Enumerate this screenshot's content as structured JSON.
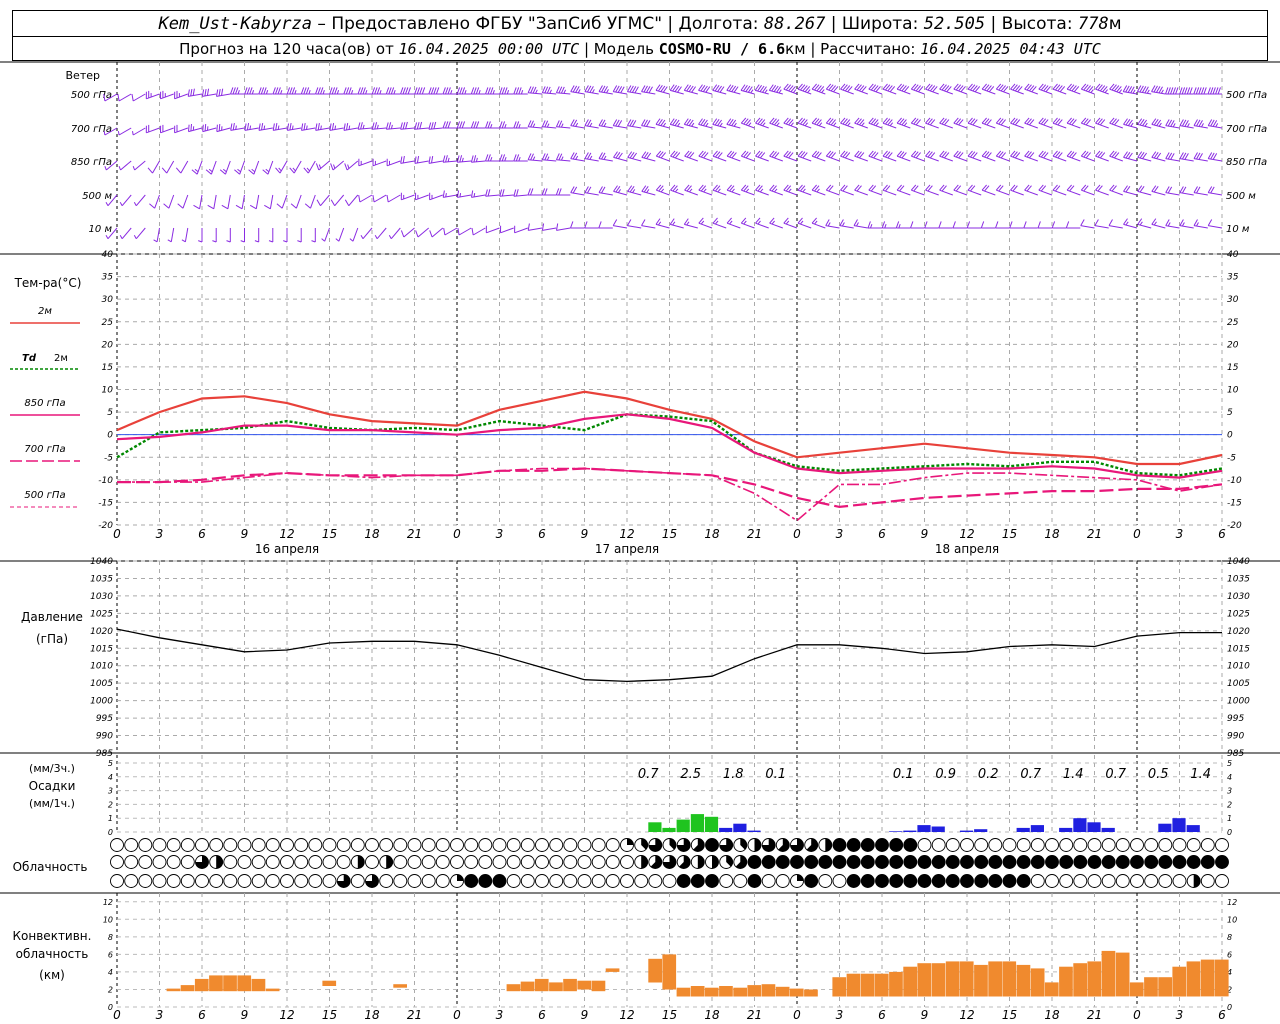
{
  "header": {
    "station": "Kem_Ust-Kabyrza",
    "provider": " – Предоставлено ФГБУ \"ЗапСиб УГМС\" | Долгота: ",
    "lon": "88.267",
    "lat_label": " | Широта: ",
    "lat": "52.505",
    "alt_label": " | Высота: ",
    "alt": "778",
    "alt_unit": "м",
    "fc_label": "Прогноз на 120 часа(ов) от ",
    "fc_time": "16.04.2025 00:00 UTC",
    "model_label": " | Модель ",
    "model": "COSMO-RU / 6.6",
    "model_unit": "км",
    "calc_label": " | Рассчитано: ",
    "calc_time": "16.04.2025 04:43 UTC"
  },
  "labels": {
    "wind": "Ветер",
    "levels": [
      "500 гПа",
      "700 гПа",
      "850 гПа",
      "500 м",
      "10  м"
    ],
    "temp_title": "Тем-ра(°С)",
    "t2m": "2м",
    "td_sym": "Td",
    "td_lvl": "2м",
    "t850": "850 гПа",
    "t700": "700 гПа",
    "t500": "500 гПа",
    "pressure_title": "Давление",
    "pressure_unit": "(гПа)",
    "precip_unit3": "(мм/3ч.)",
    "precip_title": "Осадки",
    "precip_unit1": "(мм/1ч.)",
    "cloud_title": "Облачность",
    "conv_l1": "Конвективн.",
    "conv_l2": "облачность",
    "conv_unit": "(км)"
  },
  "colors": {
    "wind": "#8a2be2",
    "t2m": "#e8413a",
    "td": "#008800",
    "t850": "#e8177a",
    "zero_line": "#3355ee",
    "precip_rain": "#1fc41f",
    "precip_snow": "#2020e0",
    "conv": "#f08a2e"
  },
  "chart_data": [
    {
      "type": "line",
      "name": "temperature",
      "x_ticks": [
        "0",
        "3",
        "6",
        "9",
        "12",
        "15",
        "18",
        "21",
        "0",
        "3",
        "6",
        "9",
        "12",
        "15",
        "18",
        "21",
        "0",
        "3",
        "6",
        "9",
        "12",
        "15",
        "18",
        "21",
        "0",
        "3",
        "6"
      ],
      "day_labels": [
        "16 апреля",
        "17 апреля",
        "18 апреля"
      ],
      "ylim": [
        -20,
        40
      ],
      "y_ticks": [
        "-20",
        "-15",
        "-10",
        "-5",
        "0",
        "5",
        "10",
        "15",
        "20",
        "25",
        "30",
        "35",
        "40"
      ],
      "x_hours": [
        0,
        3,
        6,
        9,
        12,
        15,
        18,
        21,
        24,
        27,
        30,
        33,
        36,
        39,
        42,
        45,
        48,
        51,
        54,
        57,
        60,
        63,
        66,
        69,
        72,
        75,
        78
      ],
      "series": [
        {
          "name": "2м",
          "values": [
            1,
            5,
            8,
            8.5,
            7,
            4.5,
            3,
            2.5,
            2,
            5.5,
            7.5,
            9.5,
            8,
            5.5,
            3.5,
            -1.5,
            -5,
            -4,
            -3,
            -2,
            -3,
            -4,
            -4.5,
            -5,
            -6.5,
            -6.5,
            -4.5
          ]
        },
        {
          "name": "Td 2м",
          "values": [
            -5,
            0.5,
            1,
            1.5,
            3,
            1.5,
            1,
            1.5,
            1,
            3,
            2,
            1,
            4.5,
            4,
            3,
            -4,
            -7,
            -8,
            -7.5,
            -7,
            -6.5,
            -7,
            -6,
            -6,
            -8.5,
            -9,
            -7.5
          ]
        },
        {
          "name": "850 гПа",
          "values": [
            -1,
            -0.5,
            0.5,
            2,
            2,
            1,
            1,
            0.5,
            0,
            1,
            1.5,
            3.5,
            4.5,
            3.5,
            1.5,
            -4,
            -7.5,
            -8.5,
            -8,
            -7.5,
            -7.5,
            -7.5,
            -7,
            -7.5,
            -9,
            -9.5,
            -8
          ]
        },
        {
          "name": "700 гПа",
          "values": [
            -10.5,
            -10.5,
            -10,
            -9,
            -8.5,
            -9,
            -9,
            -9,
            -9,
            -8,
            -8,
            -7.5,
            -8,
            -8.5,
            -9,
            -11,
            -14,
            -16,
            -15,
            -14,
            -13.5,
            -13,
            -12.5,
            -12.5,
            -12,
            -12,
            -11
          ]
        },
        {
          "name": "500 гПа",
          "values": [
            -10.5,
            -10.5,
            -10.5,
            -9.5,
            -8.5,
            -9,
            -9.5,
            -9,
            -9,
            -8,
            -7.5,
            -7.5,
            -8,
            -8.5,
            -9,
            -13,
            -19,
            -11,
            -11,
            -9.5,
            -8.5,
            -8.5,
            -9,
            -9.5,
            -10,
            -12.5,
            -11
          ]
        }
      ]
    },
    {
      "type": "line",
      "name": "pressure",
      "ylim": [
        985,
        1040
      ],
      "y_ticks": [
        "985",
        "990",
        "995",
        "1000",
        "1005",
        "1010",
        "1015",
        "1020",
        "1025",
        "1030",
        "1035",
        "1040"
      ],
      "x_hours": [
        0,
        3,
        6,
        9,
        12,
        15,
        18,
        21,
        24,
        27,
        30,
        33,
        36,
        39,
        42,
        45,
        48,
        51,
        54,
        57,
        60,
        63,
        66,
        69,
        72,
        75,
        78
      ],
      "values": [
        1020.5,
        1018,
        1016,
        1014,
        1014.5,
        1016.5,
        1017,
        1017,
        1016,
        1013,
        1009.5,
        1006,
        1005.5,
        1006,
        1007,
        1012,
        1016,
        1016,
        1015,
        1013.5,
        1014,
        1015.5,
        1016,
        1015.5,
        1018.5,
        1019.5,
        1019.5
      ]
    },
    {
      "type": "bar",
      "name": "precipitation",
      "ylim": [
        0,
        5
      ],
      "y_ticks": [
        "0",
        "1",
        "2",
        "3",
        "4",
        "5"
      ],
      "sums_3h": [
        {
          "h": 39,
          "v": "0.7"
        },
        {
          "h": 42,
          "v": "2.5"
        },
        {
          "h": 45,
          "v": "1.8"
        },
        {
          "h": 48,
          "v": "0.1"
        },
        {
          "h": 57,
          "v": "0.1"
        },
        {
          "h": 60,
          "v": "0.9"
        },
        {
          "h": 63,
          "v": "0.2"
        },
        {
          "h": 66,
          "v": "0.7"
        },
        {
          "h": 69,
          "v": "1.4"
        },
        {
          "h": 72,
          "v": "0.7"
        },
        {
          "h": 75,
          "v": "0.5"
        },
        {
          "h": 78,
          "v": "1.4"
        }
      ],
      "bars": [
        {
          "h": 38,
          "v": 0.7,
          "kind": "rain"
        },
        {
          "h": 39,
          "v": 0.3,
          "kind": "rain"
        },
        {
          "h": 40,
          "v": 0.9,
          "kind": "rain"
        },
        {
          "h": 41,
          "v": 1.3,
          "kind": "rain"
        },
        {
          "h": 42,
          "v": 1.1,
          "kind": "rain"
        },
        {
          "h": 43,
          "v": 0.3,
          "kind": "snow"
        },
        {
          "h": 44,
          "v": 0.6,
          "kind": "snow"
        },
        {
          "h": 45,
          "v": 0.1,
          "kind": "snow"
        },
        {
          "h": 55,
          "v": 0.05,
          "kind": "snow"
        },
        {
          "h": 56,
          "v": 0.1,
          "kind": "snow"
        },
        {
          "h": 57,
          "v": 0.5,
          "kind": "snow"
        },
        {
          "h": 58,
          "v": 0.4,
          "kind": "snow"
        },
        {
          "h": 60,
          "v": 0.1,
          "kind": "snow"
        },
        {
          "h": 61,
          "v": 0.2,
          "kind": "snow"
        },
        {
          "h": 64,
          "v": 0.3,
          "kind": "snow"
        },
        {
          "h": 65,
          "v": 0.5,
          "kind": "snow"
        },
        {
          "h": 67,
          "v": 0.3,
          "kind": "snow"
        },
        {
          "h": 68,
          "v": 1.0,
          "kind": "snow"
        },
        {
          "h": 69,
          "v": 0.7,
          "kind": "snow"
        },
        {
          "h": 70,
          "v": 0.3,
          "kind": "snow"
        },
        {
          "h": 74,
          "v": 0.6,
          "kind": "snow"
        },
        {
          "h": 75,
          "v": 1.0,
          "kind": "snow"
        },
        {
          "h": 76,
          "v": 0.5,
          "kind": "snow"
        }
      ]
    },
    {
      "type": "table",
      "name": "cloudiness",
      "note": "oktas per hour for 3 layers (0 = clear, 8 = overcast)",
      "rows": [
        "0000000000000000000000000000000000002363658634656548888880000000000000000000000000000000000000000000000000000",
        "0000006400000000040400000000000000000456544358888888888888888888888888888888888888888888888888880000000000000",
        "0000000000000000606000002888000000000000888008002800888888888888800000000000400000888888888880000048888888888"
      ]
    },
    {
      "type": "bar",
      "name": "convective cloud",
      "ylim": [
        0,
        13
      ],
      "y_ticks": [
        "0",
        "2",
        "4",
        "6",
        "8",
        "10",
        "12"
      ],
      "bars": [
        {
          "h": 4,
          "lo": 1.8,
          "hi": 2.1
        },
        {
          "h": 5,
          "lo": 1.8,
          "hi": 2.5
        },
        {
          "h": 6,
          "lo": 1.8,
          "hi": 3.2
        },
        {
          "h": 7,
          "lo": 1.8,
          "hi": 3.6
        },
        {
          "h": 8,
          "lo": 1.8,
          "hi": 3.6
        },
        {
          "h": 9,
          "lo": 1.8,
          "hi": 3.6
        },
        {
          "h": 10,
          "lo": 1.8,
          "hi": 3.2
        },
        {
          "h": 11,
          "lo": 1.8,
          "hi": 2.1
        },
        {
          "h": 15,
          "lo": 2.4,
          "hi": 3.0
        },
        {
          "h": 20,
          "lo": 2.2,
          "hi": 2.6
        },
        {
          "h": 28,
          "lo": 1.8,
          "hi": 2.6
        },
        {
          "h": 29,
          "lo": 1.8,
          "hi": 2.9
        },
        {
          "h": 30,
          "lo": 1.8,
          "hi": 3.2
        },
        {
          "h": 31,
          "lo": 1.8,
          "hi": 2.8
        },
        {
          "h": 32,
          "lo": 1.8,
          "hi": 3.2
        },
        {
          "h": 33,
          "lo": 2.0,
          "hi": 3.0
        },
        {
          "h": 34,
          "lo": 1.8,
          "hi": 3.0
        },
        {
          "h": 35,
          "lo": 4.0,
          "hi": 4.4
        },
        {
          "h": 38,
          "lo": 2.8,
          "hi": 5.5
        },
        {
          "h": 39,
          "lo": 2.0,
          "hi": 6.0
        },
        {
          "h": 40,
          "lo": 1.2,
          "hi": 2.2
        },
        {
          "h": 41,
          "lo": 1.2,
          "hi": 2.4
        },
        {
          "h": 42,
          "lo": 1.2,
          "hi": 2.2
        },
        {
          "h": 43,
          "lo": 1.2,
          "hi": 2.4
        },
        {
          "h": 44,
          "lo": 1.2,
          "hi": 2.2
        },
        {
          "h": 45,
          "lo": 1.2,
          "hi": 2.5
        },
        {
          "h": 46,
          "lo": 1.2,
          "hi": 2.6
        },
        {
          "h": 47,
          "lo": 1.2,
          "hi": 2.3
        },
        {
          "h": 48,
          "lo": 1.2,
          "hi": 2.1
        },
        {
          "h": 49,
          "lo": 1.2,
          "hi": 2.0
        },
        {
          "h": 51,
          "lo": 1.2,
          "hi": 3.4
        },
        {
          "h": 52,
          "lo": 1.2,
          "hi": 3.8
        },
        {
          "h": 53,
          "lo": 1.2,
          "hi": 3.8
        },
        {
          "h": 54,
          "lo": 1.2,
          "hi": 3.8
        },
        {
          "h": 55,
          "lo": 1.2,
          "hi": 4.0
        },
        {
          "h": 56,
          "lo": 1.2,
          "hi": 4.6
        },
        {
          "h": 57,
          "lo": 1.2,
          "hi": 5.0
        },
        {
          "h": 58,
          "lo": 1.2,
          "hi": 5.0
        },
        {
          "h": 59,
          "lo": 1.2,
          "hi": 5.2
        },
        {
          "h": 60,
          "lo": 1.2,
          "hi": 5.2
        },
        {
          "h": 61,
          "lo": 1.2,
          "hi": 4.8
        },
        {
          "h": 62,
          "lo": 1.2,
          "hi": 5.2
        },
        {
          "h": 63,
          "lo": 1.2,
          "hi": 5.2
        },
        {
          "h": 64,
          "lo": 1.2,
          "hi": 4.8
        },
        {
          "h": 65,
          "lo": 1.2,
          "hi": 4.4
        },
        {
          "h": 66,
          "lo": 1.2,
          "hi": 2.8
        },
        {
          "h": 67,
          "lo": 1.2,
          "hi": 4.6
        },
        {
          "h": 68,
          "lo": 1.2,
          "hi": 5.0
        },
        {
          "h": 69,
          "lo": 1.2,
          "hi": 5.2
        },
        {
          "h": 70,
          "lo": 1.2,
          "hi": 6.4
        },
        {
          "h": 71,
          "lo": 1.2,
          "hi": 6.2
        },
        {
          "h": 72,
          "lo": 1.2,
          "hi": 2.8
        },
        {
          "h": 73,
          "lo": 1.2,
          "hi": 3.4
        },
        {
          "h": 74,
          "lo": 1.2,
          "hi": 3.4
        },
        {
          "h": 75,
          "lo": 1.2,
          "hi": 4.6
        },
        {
          "h": 76,
          "lo": 1.2,
          "hi": 5.2
        },
        {
          "h": 77,
          "lo": 1.2,
          "hi": 5.4
        },
        {
          "h": 78,
          "lo": 1.2,
          "hi": 5.4
        }
      ]
    },
    {
      "type": "scatter",
      "name": "wind barbs",
      "note": "speed (m/s) and direction (deg, from) per level every 3 h",
      "levels": [
        "500 гПа",
        "700 гПа",
        "850 гПа",
        "500 м",
        "10  м"
      ],
      "speed": [
        [
          10,
          25,
          30,
          35,
          35,
          35,
          35,
          40,
          35,
          35,
          35,
          35,
          40,
          40,
          40,
          45,
          45,
          40,
          40,
          40,
          40,
          40,
          40,
          45,
          45,
          50,
          50
        ],
        [
          5,
          20,
          25,
          25,
          25,
          25,
          25,
          30,
          30,
          25,
          25,
          25,
          30,
          35,
          35,
          35,
          35,
          35,
          35,
          30,
          30,
          30,
          30,
          30,
          35,
          35,
          35
        ],
        [
          5,
          10,
          15,
          15,
          15,
          15,
          15,
          20,
          25,
          25,
          25,
          25,
          30,
          30,
          30,
          30,
          30,
          30,
          30,
          30,
          30,
          30,
          30,
          30,
          30,
          30,
          30
        ],
        [
          5,
          10,
          10,
          10,
          10,
          10,
          10,
          15,
          15,
          20,
          20,
          20,
          25,
          25,
          25,
          25,
          25,
          20,
          20,
          20,
          20,
          20,
          20,
          20,
          20,
          20,
          20
        ],
        [
          3,
          5,
          5,
          5,
          5,
          5,
          5,
          10,
          10,
          10,
          10,
          10,
          10,
          15,
          15,
          15,
          15,
          15,
          15,
          10,
          10,
          10,
          10,
          10,
          15,
          15,
          10
        ]
      ],
      "direction": [
        [
          240,
          250,
          260,
          270,
          270,
          270,
          270,
          270,
          270,
          270,
          275,
          280,
          280,
          285,
          285,
          285,
          290,
          290,
          290,
          290,
          290,
          290,
          290,
          290,
          280,
          270,
          270
        ],
        [
          240,
          250,
          255,
          260,
          260,
          260,
          265,
          265,
          270,
          270,
          275,
          280,
          280,
          285,
          285,
          290,
          290,
          290,
          290,
          290,
          290,
          290,
          290,
          290,
          285,
          280,
          280
        ],
        [
          230,
          210,
          200,
          200,
          210,
          230,
          250,
          260,
          265,
          270,
          275,
          280,
          285,
          290,
          290,
          290,
          290,
          290,
          290,
          290,
          290,
          290,
          290,
          290,
          285,
          280,
          280
        ],
        [
          220,
          200,
          190,
          190,
          200,
          220,
          240,
          250,
          260,
          265,
          270,
          280,
          285,
          290,
          290,
          290,
          290,
          290,
          290,
          290,
          290,
          290,
          290,
          290,
          285,
          280,
          280
        ],
        [
          220,
          190,
          180,
          180,
          180,
          200,
          220,
          230,
          240,
          250,
          260,
          270,
          280,
          285,
          290,
          290,
          290,
          280,
          270,
          270,
          270,
          270,
          270,
          280,
          285,
          280,
          280
        ]
      ]
    }
  ]
}
